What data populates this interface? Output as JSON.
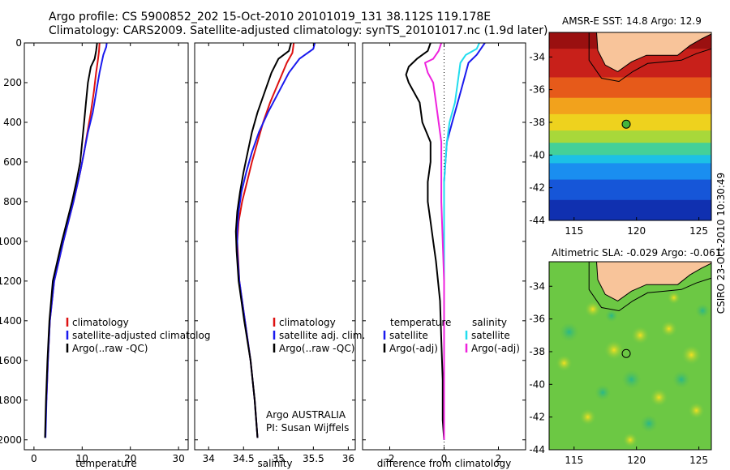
{
  "header": {
    "line1": "Argo profile: CS 5900852_202 15-Oct-2010 20101019_131 38.112S 119.178E",
    "line2": "Climatology: CARS2009. Satellite-adjusted climatology: synTS_20101017.nc (1.9d later)"
  },
  "side_label": "CSIRO 23-Oct-2010 10:30:49",
  "colors": {
    "climatology": "#dd1111",
    "satellite": "#1a1aee",
    "argo": "#000000",
    "satellite_diff_salinity": "#22ddee",
    "argo_diff_salinity": "#ee22dd",
    "land": "#f8c49a"
  },
  "chart_data": [
    {
      "type": "line",
      "xlabel": "temperature",
      "xlim": [
        -2,
        32
      ],
      "xticks": [
        0,
        10,
        20,
        30
      ],
      "ylim": [
        2050,
        0
      ],
      "yticks": [
        0,
        200,
        400,
        600,
        800,
        1000,
        1200,
        1400,
        1600,
        1800,
        2000
      ],
      "legend": [
        "climatology",
        "satellite-adjusted climatolog",
        "Argo(..raw -QC)"
      ],
      "series": [
        {
          "name": "climatology",
          "pressure": [
            0,
            40,
            80,
            150,
            250,
            350,
            450,
            550,
            650,
            800,
            1000,
            1200,
            1400,
            1600,
            1800
          ],
          "values": [
            13.6,
            13.5,
            13.3,
            12.9,
            12.4,
            11.8,
            11.1,
            10.4,
            9.6,
            8.2,
            6.1,
            4.2,
            3.3,
            2.9,
            2.6
          ]
        },
        {
          "name": "satellite-adjusted climatology",
          "pressure": [
            0,
            20,
            60,
            150,
            250,
            350,
            450,
            550,
            650,
            800,
            1000,
            1200,
            1400,
            1600,
            1800,
            1990
          ],
          "values": [
            15.1,
            15.0,
            14.4,
            13.6,
            12.9,
            12.2,
            11.2,
            10.4,
            9.6,
            8.2,
            6.1,
            4.2,
            3.3,
            2.9,
            2.6,
            2.4
          ]
        },
        {
          "name": "Argo(..raw -QC)",
          "pressure": [
            0,
            40,
            80,
            120,
            200,
            300,
            400,
            500,
            600,
            700,
            800,
            1000,
            1200,
            1400,
            1600,
            1800,
            1990
          ],
          "values": [
            13.1,
            12.9,
            12.6,
            11.8,
            11.2,
            10.8,
            10.4,
            10.0,
            9.6,
            8.8,
            7.9,
            5.8,
            3.9,
            3.2,
            2.8,
            2.5,
            2.3
          ]
        }
      ]
    },
    {
      "type": "line",
      "xlabel": "salinity",
      "xlim": [
        33.8,
        36.1
      ],
      "xticks": [
        34,
        34.5,
        35,
        35.5,
        36
      ],
      "ylim": [
        2050,
        0
      ],
      "legend": [
        "climatology",
        "satellite adj. clim.",
        "Argo(..raw -QC)"
      ],
      "annotations": [
        "Argo AUSTRALIA",
        "PI: Susan Wijffels"
      ],
      "series": [
        {
          "name": "climatology",
          "pressure": [
            0,
            50,
            100,
            200,
            300,
            400,
            500,
            600,
            700,
            800,
            900,
            1000,
            1200,
            1400,
            1600,
            1800,
            1990
          ],
          "values": [
            35.22,
            35.2,
            35.12,
            35.0,
            34.88,
            34.78,
            34.7,
            34.62,
            34.55,
            34.48,
            34.43,
            34.41,
            34.44,
            34.52,
            34.6,
            34.66,
            34.7
          ]
        },
        {
          "name": "satellite adj. clim.",
          "pressure": [
            0,
            30,
            80,
            150,
            250,
            350,
            450,
            550,
            650,
            750,
            850,
            950,
            1050,
            1200,
            1400,
            1600,
            1800,
            1990
          ],
          "values": [
            35.52,
            35.5,
            35.3,
            35.15,
            35.0,
            34.85,
            34.72,
            34.62,
            34.54,
            34.47,
            34.43,
            34.41,
            34.41,
            34.44,
            34.52,
            34.6,
            34.66,
            34.7
          ]
        },
        {
          "name": "Argo(..raw -QC)",
          "pressure": [
            0,
            40,
            80,
            150,
            250,
            350,
            450,
            550,
            650,
            750,
            850,
            950,
            1050,
            1200,
            1400,
            1600,
            1800,
            1990
          ],
          "values": [
            35.18,
            35.15,
            35.0,
            34.9,
            34.8,
            34.7,
            34.62,
            34.56,
            34.5,
            34.45,
            34.41,
            34.39,
            34.4,
            34.43,
            34.51,
            34.6,
            34.66,
            34.7
          ]
        }
      ]
    },
    {
      "type": "line",
      "xlabel": "difference from climatology",
      "xlim": [
        -3,
        3
      ],
      "xticks": [
        -2,
        0,
        2
      ],
      "ylim": [
        2050,
        0
      ],
      "legend": [
        "temperature",
        "satellite",
        "Argo(-adj)",
        "salinity",
        "satellite",
        "Argo(-adj)"
      ],
      "series": [
        {
          "name": "temperature satellite",
          "pressure": [
            0,
            20,
            60,
            100,
            200,
            300,
            400,
            500,
            700,
            1000,
            1500,
            2000
          ],
          "values": [
            1.5,
            1.4,
            1.2,
            0.9,
            0.7,
            0.5,
            0.3,
            0.1,
            0.0,
            0.0,
            0.0,
            0.0
          ]
        },
        {
          "name": "temperature Argo(-adj)",
          "pressure": [
            0,
            40,
            80,
            120,
            160,
            200,
            300,
            400,
            500,
            600,
            700,
            800,
            900,
            1000,
            1100,
            1300,
            1500,
            1700,
            1900,
            2000
          ],
          "values": [
            -0.5,
            -0.6,
            -1.0,
            -1.3,
            -1.4,
            -1.3,
            -0.9,
            -0.8,
            -0.5,
            -0.5,
            -0.6,
            -0.6,
            -0.5,
            -0.4,
            -0.3,
            -0.15,
            -0.1,
            -0.05,
            -0.05,
            0.0
          ]
        },
        {
          "name": "salinity satellite",
          "pressure": [
            0,
            30,
            60,
            100,
            200,
            300,
            400,
            500,
            700,
            1000,
            1500,
            2000
          ],
          "values": [
            1.3,
            1.2,
            0.8,
            0.6,
            0.5,
            0.4,
            0.2,
            0.1,
            0.0,
            0.0,
            0.0,
            0.0
          ]
        },
        {
          "name": "salinity Argo(-adj)",
          "pressure": [
            0,
            40,
            80,
            100,
            150,
            200,
            300,
            400,
            500,
            600,
            800,
            1000,
            1200,
            1500,
            1800,
            2000
          ],
          "values": [
            -0.1,
            -0.2,
            -0.4,
            -0.7,
            -0.6,
            -0.4,
            -0.3,
            -0.2,
            -0.1,
            -0.1,
            -0.1,
            -0.05,
            0.0,
            0.0,
            0.0,
            0.0
          ]
        }
      ]
    },
    {
      "type": "heatmap",
      "title": "AMSR-E SST: 14.8 Argo: 12.9",
      "xlim": [
        113,
        126
      ],
      "xticks": [
        115,
        120,
        125
      ],
      "ylim": [
        -44,
        -32.5
      ],
      "yticks": [
        -44,
        -42,
        -40,
        -38,
        -36,
        -34
      ],
      "marker": {
        "lon": 119.178,
        "lat": -38.112
      }
    },
    {
      "type": "heatmap",
      "title": "Altimetric SLA: -0.029 Argo: -0.061",
      "xlim": [
        113,
        126
      ],
      "xticks": [
        115,
        120,
        125
      ],
      "ylim": [
        -44,
        -32.5
      ],
      "yticks": [
        -44,
        -42,
        -40,
        -38,
        -36,
        -34
      ],
      "marker": {
        "lon": 119.178,
        "lat": -38.112
      }
    }
  ]
}
